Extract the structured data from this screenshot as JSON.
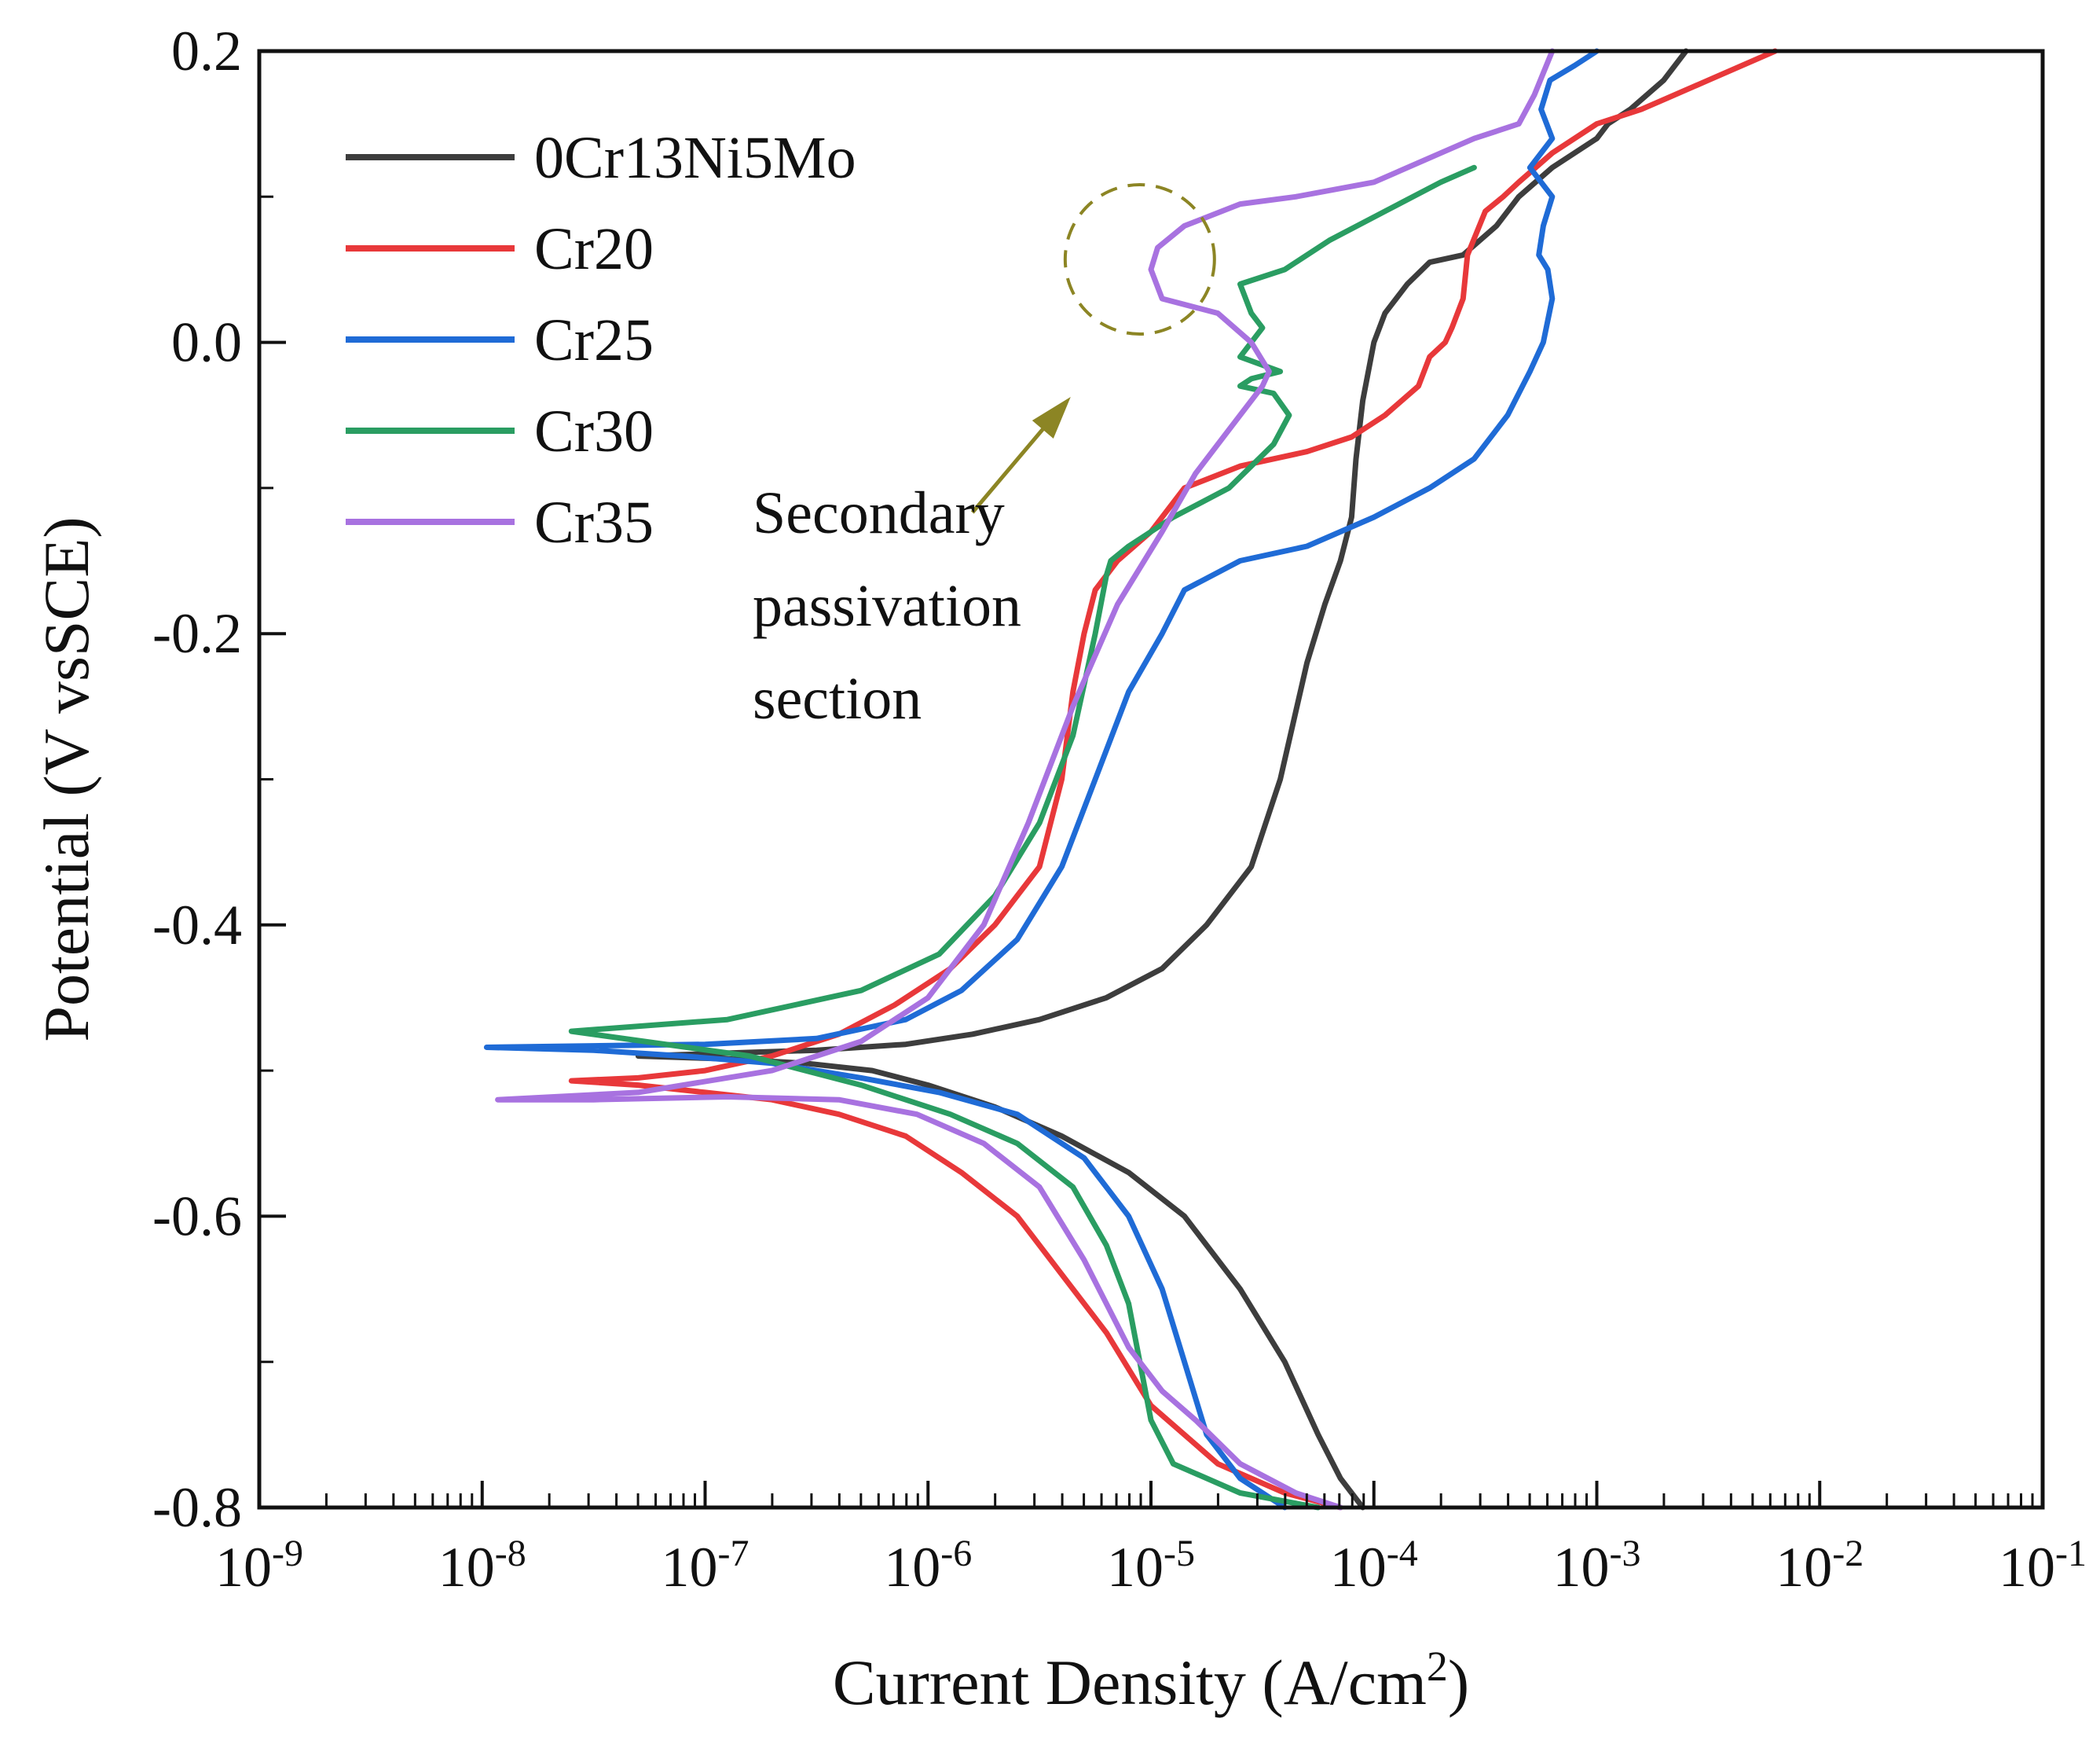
{
  "chart_data": {
    "type": "line",
    "title": "",
    "xlabel": "Current Density (A/cm",
    "xlabel_sup": "2",
    "xlabel_end": ")",
    "ylabel": "Potential (V vsSCE)",
    "x_scale": "log",
    "xlim_log10": [
      -9,
      -1
    ],
    "ylim": [
      -0.8,
      0.2
    ],
    "grid": false,
    "legend_position": "top-left",
    "x_ticks": [
      {
        "base": "10",
        "exp": "-9",
        "log": -9
      },
      {
        "base": "10",
        "exp": "-8",
        "log": -8
      },
      {
        "base": "10",
        "exp": "-7",
        "log": -7
      },
      {
        "base": "10",
        "exp": "-6",
        "log": -6
      },
      {
        "base": "10",
        "exp": "-5",
        "log": -5
      },
      {
        "base": "10",
        "exp": "-4",
        "log": -4
      },
      {
        "base": "10",
        "exp": "-3",
        "log": -3
      },
      {
        "base": "10",
        "exp": "-2",
        "log": -2
      },
      {
        "base": "10",
        "exp": "-1",
        "log": -1
      }
    ],
    "y_ticks": [
      {
        "label": "0.2",
        "value": 0.2
      },
      {
        "label": "0.0",
        "value": 0.0
      },
      {
        "label": "-0.2",
        "value": -0.2
      },
      {
        "label": "-0.4",
        "value": -0.4
      },
      {
        "label": "-0.6",
        "value": -0.6
      },
      {
        "label": "-0.8",
        "value": -0.8
      }
    ],
    "annotation": {
      "lines": [
        "Secondary",
        "passivation",
        "section"
      ],
      "center_log10": -5.05,
      "center_potential": 0.057,
      "color": "#8c8524"
    },
    "series": [
      {
        "name": "0Cr13Ni5Mo",
        "color": "#3d3d3d",
        "log_i": [
          -4.05,
          -4.15,
          -4.25,
          -4.4,
          -4.6,
          -4.85,
          -5.1,
          -5.4,
          -5.7,
          -6.0,
          -6.25,
          -6.55,
          -6.9,
          -7.3,
          -6.9,
          -6.5,
          -6.1,
          -5.8,
          -5.5,
          -5.2,
          -4.95,
          -4.75,
          -4.55,
          -4.42,
          -4.3,
          -4.22,
          -4.15,
          -4.1,
          -4.08,
          -4.05,
          -4.0,
          -3.95,
          -3.85,
          -3.75,
          -3.6,
          -3.45,
          -3.35,
          -3.2,
          -3.0,
          -2.95,
          -2.85,
          -2.7,
          -2.6
        ],
        "potential": [
          -0.8,
          -0.78,
          -0.75,
          -0.7,
          -0.65,
          -0.6,
          -0.57,
          -0.545,
          -0.525,
          -0.51,
          -0.5,
          -0.495,
          -0.492,
          -0.49,
          -0.488,
          -0.486,
          -0.482,
          -0.475,
          -0.465,
          -0.45,
          -0.43,
          -0.4,
          -0.36,
          -0.3,
          -0.22,
          -0.18,
          -0.15,
          -0.12,
          -0.08,
          -0.04,
          0.0,
          0.02,
          0.04,
          0.055,
          0.06,
          0.08,
          0.1,
          0.12,
          0.14,
          0.15,
          0.16,
          0.18,
          0.2
        ]
      },
      {
        "name": "Cr20",
        "color": "#e8383a",
        "log_i": [
          -4.15,
          -4.4,
          -4.7,
          -5.0,
          -5.2,
          -5.4,
          -5.6,
          -5.85,
          -6.1,
          -6.4,
          -6.7,
          -7.0,
          -7.3,
          -7.6,
          -7.3,
          -7.0,
          -6.7,
          -6.4,
          -6.15,
          -5.9,
          -5.7,
          -5.5,
          -5.4,
          -5.35,
          -5.3,
          -5.25,
          -5.15,
          -5.0,
          -4.85,
          -4.6,
          -4.3,
          -4.1,
          -3.95,
          -3.8,
          -3.75,
          -3.68,
          -3.65,
          -3.6,
          -3.58,
          -3.5,
          -3.42,
          -3.35,
          -3.2,
          -3.0,
          -2.8,
          -2.5,
          -2.2
        ],
        "potential": [
          -0.8,
          -0.79,
          -0.77,
          -0.73,
          -0.68,
          -0.64,
          -0.6,
          -0.57,
          -0.545,
          -0.53,
          -0.52,
          -0.515,
          -0.51,
          -0.507,
          -0.505,
          -0.5,
          -0.49,
          -0.475,
          -0.455,
          -0.43,
          -0.4,
          -0.36,
          -0.3,
          -0.24,
          -0.2,
          -0.17,
          -0.15,
          -0.13,
          -0.1,
          -0.085,
          -0.075,
          -0.065,
          -0.05,
          -0.03,
          -0.01,
          0.0,
          0.01,
          0.03,
          0.06,
          0.09,
          0.1,
          0.11,
          0.13,
          0.15,
          0.16,
          0.18,
          0.2
        ]
      },
      {
        "name": "Cr25",
        "color": "#1f6bd6",
        "log_i": [
          -4.4,
          -4.6,
          -4.75,
          -4.85,
          -4.95,
          -5.1,
          -5.3,
          -5.6,
          -5.95,
          -6.3,
          -6.7,
          -7.1,
          -7.5,
          -7.98,
          -7.5,
          -7.0,
          -6.5,
          -6.1,
          -5.85,
          -5.6,
          -5.4,
          -5.25,
          -5.1,
          -4.95,
          -4.85,
          -4.6,
          -4.3,
          -4.0,
          -3.75,
          -3.55,
          -3.4,
          -3.3,
          -3.24,
          -3.2,
          -3.22,
          -3.26,
          -3.24,
          -3.2,
          -3.3,
          -3.2,
          -3.25,
          -3.21,
          -3.1,
          -3.0
        ],
        "potential": [
          -0.8,
          -0.78,
          -0.75,
          -0.7,
          -0.65,
          -0.6,
          -0.56,
          -0.53,
          -0.515,
          -0.505,
          -0.495,
          -0.49,
          -0.486,
          -0.484,
          -0.483,
          -0.482,
          -0.478,
          -0.465,
          -0.445,
          -0.41,
          -0.36,
          -0.3,
          -0.24,
          -0.2,
          -0.17,
          -0.15,
          -0.14,
          -0.12,
          -0.1,
          -0.08,
          -0.05,
          -0.02,
          0.0,
          0.03,
          0.05,
          0.06,
          0.08,
          0.1,
          0.12,
          0.14,
          0.16,
          0.18,
          0.19,
          0.2
        ]
      },
      {
        "name": "Cr30",
        "color": "#2a9d62",
        "log_i": [
          -4.25,
          -4.6,
          -4.9,
          -5.0,
          -5.05,
          -5.1,
          -5.2,
          -5.35,
          -5.6,
          -5.9,
          -6.3,
          -6.8,
          -7.6,
          -6.9,
          -6.3,
          -5.95,
          -5.7,
          -5.5,
          -5.35,
          -5.25,
          -5.2,
          -5.18,
          -5.1,
          -4.9,
          -4.65,
          -4.45,
          -4.38,
          -4.45,
          -4.6,
          -4.55,
          -4.42,
          -4.6,
          -4.55,
          -4.5,
          -4.55,
          -4.6,
          -4.4,
          -4.2,
          -3.95,
          -3.7,
          -3.55
        ],
        "potential": [
          -0.8,
          -0.79,
          -0.77,
          -0.74,
          -0.7,
          -0.66,
          -0.62,
          -0.58,
          -0.55,
          -0.53,
          -0.51,
          -0.49,
          -0.473,
          -0.465,
          -0.445,
          -0.42,
          -0.38,
          -0.33,
          -0.27,
          -0.2,
          -0.16,
          -0.15,
          -0.14,
          -0.12,
          -0.1,
          -0.07,
          -0.05,
          -0.035,
          -0.03,
          -0.025,
          -0.02,
          -0.01,
          0.0,
          0.01,
          0.02,
          0.04,
          0.05,
          0.07,
          0.09,
          0.11,
          0.12
        ]
      },
      {
        "name": "Cr35",
        "color": "#a872e0",
        "log_i": [
          -4.15,
          -4.35,
          -4.6,
          -4.8,
          -4.95,
          -5.1,
          -5.3,
          -5.5,
          -5.75,
          -6.05,
          -6.4,
          -6.9,
          -7.5,
          -7.93,
          -7.3,
          -6.7,
          -6.3,
          -6.0,
          -5.75,
          -5.55,
          -5.35,
          -5.15,
          -4.95,
          -4.8,
          -4.65,
          -4.5,
          -4.47,
          -4.55,
          -4.7,
          -4.95,
          -5.0,
          -4.97,
          -4.85,
          -4.6,
          -4.35,
          -4.0,
          -3.7,
          -3.55,
          -3.35,
          -3.28,
          -3.2
        ],
        "potential": [
          -0.8,
          -0.79,
          -0.77,
          -0.74,
          -0.72,
          -0.69,
          -0.63,
          -0.58,
          -0.55,
          -0.53,
          -0.52,
          -0.518,
          -0.52,
          -0.52,
          -0.515,
          -0.5,
          -0.48,
          -0.45,
          -0.4,
          -0.33,
          -0.25,
          -0.18,
          -0.13,
          -0.09,
          -0.06,
          -0.03,
          -0.02,
          0.0,
          0.02,
          0.03,
          0.05,
          0.065,
          0.08,
          0.095,
          0.1,
          0.11,
          0.13,
          0.14,
          0.15,
          0.17,
          0.2
        ]
      }
    ]
  }
}
